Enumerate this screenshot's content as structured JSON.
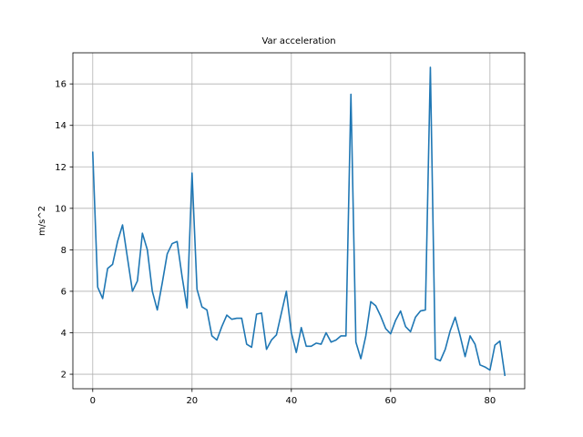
{
  "chart_data": {
    "type": "line",
    "title": "Var acceleration",
    "xlabel": "",
    "ylabel": "m/s^2",
    "xlim": [
      -4,
      87
    ],
    "ylim": [
      1.3,
      17.5
    ],
    "xticks": [
      0,
      20,
      40,
      60,
      80
    ],
    "yticks": [
      2,
      4,
      6,
      8,
      10,
      12,
      14,
      16
    ],
    "grid": true,
    "series": [
      {
        "color": "#1f77b4",
        "x": [
          0,
          1,
          2,
          3,
          4,
          5,
          6,
          7,
          8,
          9,
          10,
          11,
          12,
          13,
          14,
          15,
          16,
          17,
          18,
          19,
          20,
          21,
          22,
          23,
          24,
          25,
          26,
          27,
          28,
          29,
          30,
          31,
          32,
          33,
          34,
          35,
          36,
          37,
          38,
          39,
          40,
          41,
          42,
          43,
          44,
          45,
          46,
          47,
          48,
          49,
          50,
          51,
          52,
          53,
          54,
          55,
          56,
          57,
          58,
          59,
          60,
          61,
          62,
          63,
          64,
          65,
          66,
          67,
          68,
          69,
          70,
          71,
          72,
          73,
          74,
          75,
          76,
          77,
          78,
          79,
          80,
          81,
          82,
          83
        ],
        "y": [
          12.7,
          6.2,
          5.65,
          7.1,
          7.3,
          8.4,
          9.2,
          7.6,
          6.0,
          6.5,
          8.8,
          8.0,
          6.0,
          5.1,
          6.4,
          7.8,
          8.3,
          8.4,
          6.7,
          5.2,
          11.7,
          6.1,
          5.25,
          5.1,
          3.85,
          3.65,
          4.3,
          4.85,
          4.65,
          4.7,
          4.7,
          3.45,
          3.3,
          4.9,
          4.95,
          3.2,
          3.65,
          3.9,
          4.95,
          6.0,
          4.0,
          3.05,
          4.25,
          3.35,
          3.35,
          3.5,
          3.45,
          4.0,
          3.55,
          3.65,
          3.85,
          3.85,
          15.5,
          3.55,
          2.75,
          3.85,
          5.5,
          5.3,
          4.8,
          4.2,
          3.95,
          4.6,
          5.05,
          4.3,
          4.05,
          4.75,
          5.05,
          5.1,
          16.8,
          2.75,
          2.65,
          3.2,
          4.1,
          4.75,
          3.85,
          2.85,
          3.85,
          3.45,
          2.45,
          2.35,
          2.2,
          3.4,
          3.6,
          1.95
        ]
      }
    ]
  }
}
